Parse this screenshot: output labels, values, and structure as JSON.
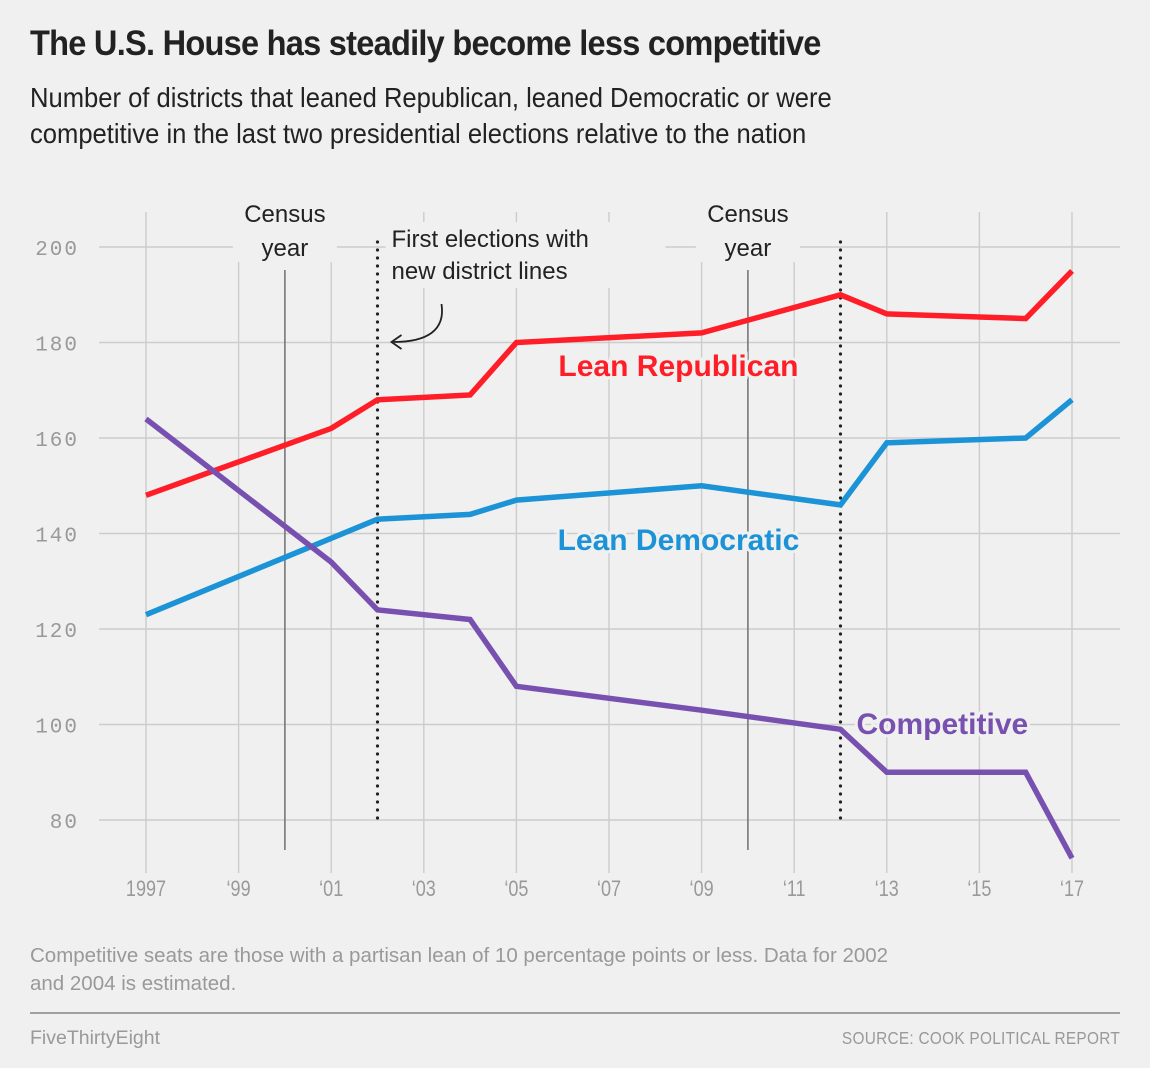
{
  "header": {
    "title": "The U.S. House has steadily become less competitive",
    "subtitle_lines": [
      "Number of districts that leaned Republican, leaned Democratic or were",
      "competitive in the last two presidential elections relative to the nation"
    ]
  },
  "chart_data": {
    "type": "line",
    "title": "The U.S. House has steadily become less competitive",
    "subtitle": "Number of districts that leaned Republican, leaned Democratic or were competitive in the last two presidential elections relative to the nation",
    "xlabel": "",
    "ylabel": "",
    "xlim": [
      1997,
      2017
    ],
    "ylim": [
      72,
      205
    ],
    "grid": true,
    "x_ticks": [
      1997,
      1999,
      2001,
      2003,
      2005,
      2007,
      2009,
      2011,
      2013,
      2015,
      2017
    ],
    "x_tick_labels": [
      "1997",
      "‘99",
      "‘01",
      "‘03",
      "‘05",
      "‘07",
      "‘09",
      "‘11",
      "‘13",
      "‘15",
      "‘17"
    ],
    "y_ticks": [
      80,
      100,
      120,
      140,
      160,
      180,
      200
    ],
    "y_tick_labels": [
      "80",
      "100",
      "120",
      "140",
      "160",
      "180",
      "200"
    ],
    "series": [
      {
        "name": "Lean Republican",
        "color": "#ff1e27",
        "x": [
          1997,
          2001,
          2002,
          2004,
          2005,
          2009,
          2012,
          2013,
          2016,
          2017
        ],
        "values": [
          148,
          162,
          168,
          169,
          180,
          182,
          190,
          186,
          185,
          195
        ]
      },
      {
        "name": "Lean Democratic",
        "color": "#1b93d6",
        "x": [
          1997,
          2001,
          2002,
          2004,
          2005,
          2009,
          2012,
          2013,
          2016,
          2017
        ],
        "values": [
          123,
          139,
          143,
          144,
          147,
          150,
          146,
          159,
          160,
          168
        ]
      },
      {
        "name": "Competitive",
        "color": "#7851b0",
        "x": [
          1997,
          2001,
          2002,
          2004,
          2005,
          2009,
          2012,
          2013,
          2016,
          2017
        ],
        "values": [
          164,
          134,
          124,
          122,
          108,
          103,
          99,
          90,
          90,
          72
        ]
      }
    ],
    "series_labels": [
      {
        "text": "Lean Republican",
        "series": 0,
        "x": 2008.5,
        "y": 173
      },
      {
        "text": "Lean Democratic",
        "series": 1,
        "x": 2008.5,
        "y": 136.5
      },
      {
        "text": "Competitive",
        "series": 2,
        "x": 2014.2,
        "y": 98
      }
    ],
    "annotations": [
      {
        "type": "vline-solid",
        "x": 2000,
        "label_lines": [
          "Census",
          "year"
        ]
      },
      {
        "type": "vline-solid",
        "x": 2010,
        "label_lines": [
          "Census",
          "year"
        ]
      },
      {
        "type": "vline-dotted",
        "x": 2002,
        "label_lines": [
          "First elections with",
          "new district lines"
        ],
        "arrow": true
      },
      {
        "type": "vline-dotted",
        "x": 2012
      }
    ],
    "colors": {
      "grid": "#cccccc",
      "tick_text": "#999999",
      "annotation": "#222222",
      "census_line": "#777777"
    }
  },
  "footer": {
    "note_lines": [
      "Competitive seats are those with a partisan lean of 10 percentage points or less. Data for 2002",
      "and 2004 is estimated."
    ],
    "brand": "FiveThirtyEight",
    "source": "SOURCE: COOK POLITICAL REPORT"
  }
}
